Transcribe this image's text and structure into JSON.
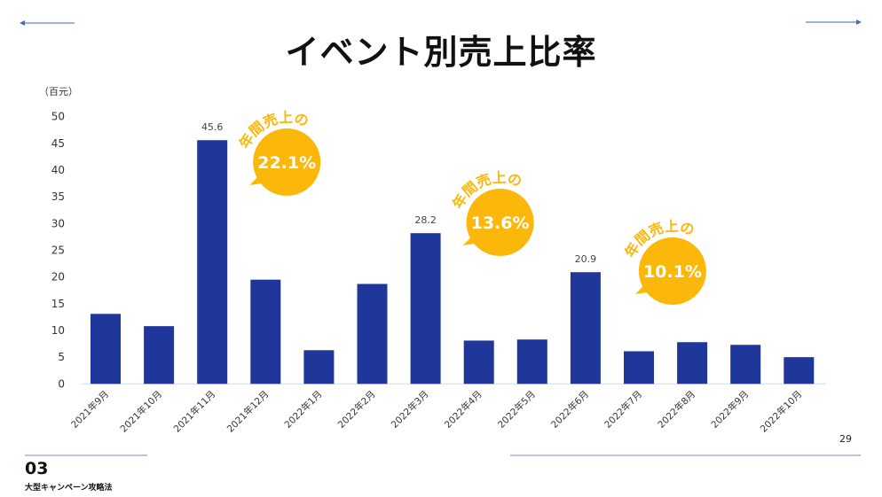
{
  "page": {
    "title": "イベント別売上比率",
    "unit_label": "（百元）",
    "page_number": "29",
    "section_number": "03",
    "section_name": "大型キャンペーン攻略法",
    "nav": {
      "prev_icon": "arrow-left-icon",
      "next_icon": "arrow-right-icon"
    }
  },
  "chart_data": {
    "type": "bar",
    "title": "イベント別売上比率",
    "ylabel": "（百元）",
    "xlabel": "",
    "ylim": [
      0,
      50
    ],
    "yticks": [
      "0",
      "5",
      "10",
      "15",
      "20",
      "25",
      "30",
      "35",
      "40",
      "45",
      "50"
    ],
    "grid": false,
    "categories": [
      "2021年9月",
      "2021年10月",
      "2021年11月",
      "2021年12月",
      "2022年1月",
      "2022年2月",
      "2022年3月",
      "2022年4月",
      "2022年5月",
      "2022年6月",
      "2022年7月",
      "2022年8月",
      "2022年9月",
      "2022年10月"
    ],
    "values": [
      13.1,
      10.8,
      45.6,
      19.5,
      6.3,
      18.7,
      28.2,
      8.1,
      8.3,
      20.9,
      6.1,
      7.8,
      7.3,
      5.0
    ],
    "data_labels": {
      "2": "45.6",
      "6": "28.2",
      "9": "20.9"
    },
    "bar_color": "#1f369b",
    "annotations": [
      {
        "category_index": 2,
        "caption": "年間売上の",
        "value": "22.1%"
      },
      {
        "category_index": 6,
        "caption": "年間売上の",
        "value": "13.6%"
      },
      {
        "category_index": 9,
        "caption": "年間売上の",
        "value": "10.1%"
      }
    ],
    "annotation_color": "#fbb80a"
  }
}
